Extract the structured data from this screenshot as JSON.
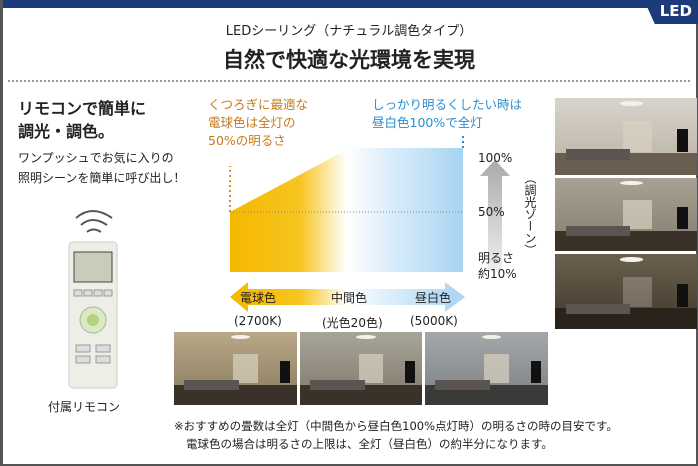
{
  "badge": "LED",
  "header": {
    "subtitle": "LEDシーリング（ナチュラル調色タイプ）",
    "title": "自然で快適な光環境を実現"
  },
  "remote": {
    "heading_line1": "リモコンで簡単に",
    "heading_line2": "調光・調色。",
    "desc_line1": "ワンプッシュでお気に入りの",
    "desc_line2": "照明シーンを簡単に呼び出し！",
    "caption": "付属リモコン"
  },
  "callouts": {
    "warm": [
      "くつろぎに最適な",
      "電球色は全灯の",
      "50%の明るさ"
    ],
    "cool": [
      "しっかり明るくしたい時は",
      "昼白色100%で全灯"
    ]
  },
  "brightness": {
    "top": "100%",
    "mid": "50%",
    "bottom_line1": "明るさ",
    "bottom_line2": "約10%",
    "zone": "（調光ゾーン）",
    "min_percent": 10,
    "warm_max_percent": 50,
    "cool_max_percent": 100
  },
  "color_scale": {
    "labels": [
      "電球色",
      "中間色",
      "昼白色"
    ],
    "kelvin": [
      "(2700K)",
      "(光色20色)",
      "(5000K)"
    ],
    "colors": {
      "warm": "#f5b800",
      "cool": "#a8d4f2"
    }
  },
  "note": [
    "※おすすめの畳数は全灯（中間色から昼白色100%点灯時）の明るさの時の目安です。",
    "電球色の場合は明るさの上限は、全灯（昼白色）の約半分になります。"
  ]
}
